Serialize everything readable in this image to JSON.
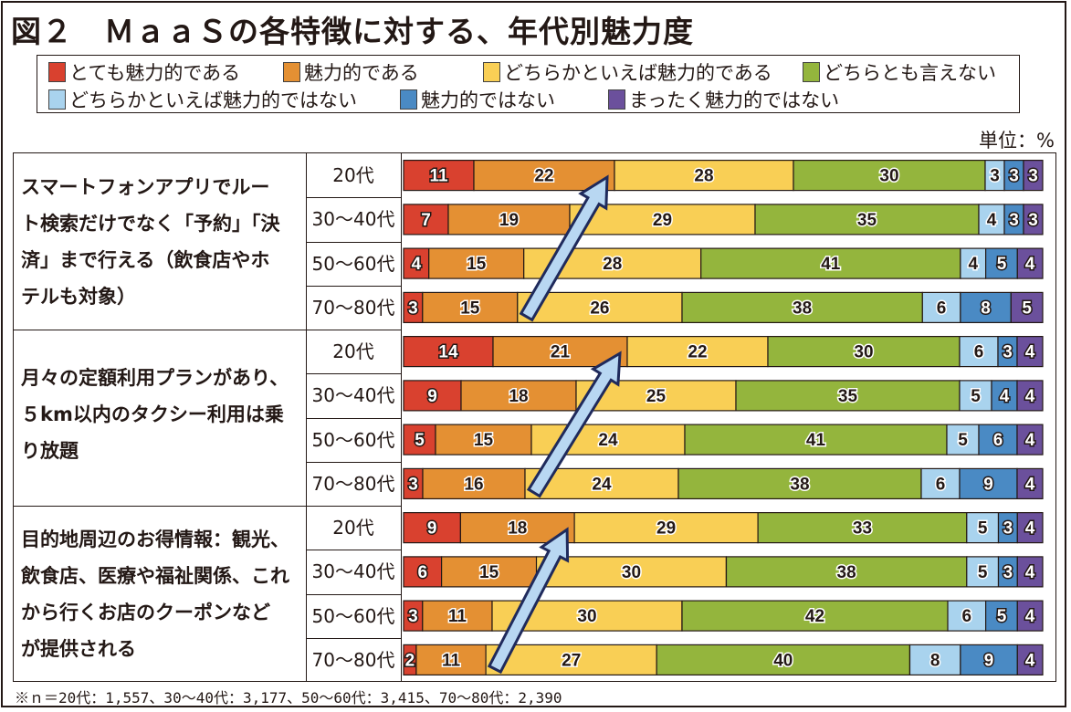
{
  "title": "図２　ＭａａＳの各特徴に対する、年代別魅力度",
  "unit_label": "単位：%",
  "footnote": "※ｎ＝20代：1,557、30～40代：3,177、50～60代：3,415、70～80代：2,390",
  "legend": [
    {
      "label": "とても魅力的である",
      "color": "#d9412f"
    },
    {
      "label": "魅力的である",
      "color": "#e49033"
    },
    {
      "label": "どちらかといえば魅力的である",
      "color": "#f9cf55"
    },
    {
      "label": "どちらとも言えない",
      "color": "#94b53d"
    },
    {
      "label": "どちらかといえば魅力的ではない",
      "color": "#a9d3ee"
    },
    {
      "label": "魅力的ではない",
      "color": "#4a8ac4"
    },
    {
      "label": "まったく魅力的ではない",
      "color": "#6b509c"
    }
  ],
  "chart_data": {
    "type": "bar",
    "orientation": "horizontal-stacked-100",
    "title": "図２　ＭａａＳの各特徴に対する、年代別魅力度",
    "unit": "%",
    "xlim": [
      0,
      100
    ],
    "series_names": [
      "とても魅力的である",
      "魅力的である",
      "どちらかといえば魅力的である",
      "どちらとも言えない",
      "どちらかといえば魅力的ではない",
      "魅力的ではない",
      "まったく魅力的ではない"
    ],
    "groups": [
      {
        "label": "スマートフォンアプリでルート検索だけでなく「予約」「決済」まで行える（飲食店やホテルも対象）",
        "label_lines": [
          "スマートフォンアプリでルー",
          "ト検索だけでなく「予約」「決",
          "済」まで行える（飲食店やホ",
          "テルも対象）"
        ],
        "rows": [
          {
            "age": "20代",
            "values": [
              11,
              22,
              28,
              30,
              3,
              3,
              3
            ]
          },
          {
            "age": "30～40代",
            "values": [
              7,
              19,
              29,
              35,
              4,
              3,
              3
            ]
          },
          {
            "age": "50～60代",
            "values": [
              4,
              15,
              28,
              41,
              4,
              5,
              4
            ]
          },
          {
            "age": "70～80代",
            "values": [
              3,
              15,
              26,
              38,
              6,
              8,
              5
            ]
          }
        ]
      },
      {
        "label": "月々の定額利用プランがあり、５km以内のタクシー利用は乗り放題",
        "label_lines": [
          "月々の定額利用プランがあり、",
          "５km以内のタクシー利用は乗",
          "り放題"
        ],
        "rows": [
          {
            "age": "20代",
            "values": [
              14,
              21,
              22,
              30,
              6,
              3,
              4
            ]
          },
          {
            "age": "30～40代",
            "values": [
              9,
              18,
              25,
              35,
              5,
              4,
              4
            ]
          },
          {
            "age": "50～60代",
            "values": [
              5,
              15,
              24,
              41,
              5,
              6,
              4
            ]
          },
          {
            "age": "70～80代",
            "values": [
              3,
              16,
              24,
              38,
              6,
              9,
              4
            ]
          }
        ]
      },
      {
        "label": "目的地周辺のお得情報：観光、飲食店、医療や福祉関係、これから行くお店のクーポンなどが提供される",
        "label_lines": [
          "目的地周辺のお得情報：観光、",
          "飲食店、医療や福祉関係、これ",
          "から行くお店のクーポンなど",
          "が提供される"
        ],
        "rows": [
          {
            "age": "20代",
            "values": [
              9,
              18,
              29,
              33,
              5,
              3,
              4
            ]
          },
          {
            "age": "30～40代",
            "values": [
              6,
              15,
              30,
              38,
              5,
              3,
              4
            ]
          },
          {
            "age": "50～60代",
            "values": [
              3,
              11,
              30,
              42,
              6,
              5,
              4
            ]
          },
          {
            "age": "70～80代",
            "values": [
              2,
              11,
              27,
              40,
              8,
              9,
              4
            ]
          }
        ]
      }
    ],
    "annotations": [
      {
        "type": "arrow",
        "group": 0,
        "description": "70～80代から20代へ向けて、魅力的と答える割合の上昇を示す矢印"
      },
      {
        "type": "arrow",
        "group": 1,
        "description": "70～80代から20代へ向けて、魅力的と答える割合の上昇を示す矢印"
      },
      {
        "type": "arrow",
        "group": 2,
        "description": "70～80代から20代へ向けて、魅力的と答える割合の上昇を示す矢印"
      }
    ],
    "arrow_color": "#b8d7f2",
    "arrow_outline": "#1f2a5c"
  }
}
